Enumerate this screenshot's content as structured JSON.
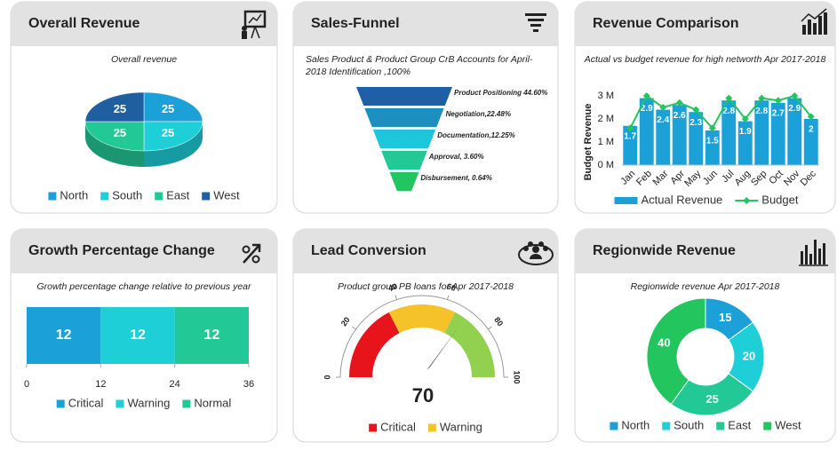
{
  "chart_data": [
    {
      "type": "pie3d",
      "title": "Overall Revenue",
      "subtitle": "Overall revenue",
      "categories": [
        "North",
        "South",
        "East",
        "West"
      ],
      "values": [
        25,
        25,
        25,
        25
      ],
      "colors": [
        "#1ba1d8",
        "#1fcfd8",
        "#22c997",
        "#1f5fa0"
      ],
      "legend": "bottom"
    },
    {
      "type": "funnel",
      "title": "Sales-Funnel",
      "subtitle": [
        "Sales Product & Product Group CrB Accounts for April-",
        "2018 Identification ,100%"
      ],
      "categories": [
        "Product Positioning 44.60%",
        "Negotiation,22.48%",
        "Documentation,12.25%",
        "Approval, 3.60%",
        "Disbursement, 0.64%"
      ],
      "values": [
        44.6,
        22.48,
        12.25,
        3.6,
        0.64
      ],
      "colors": [
        "#1f5fa6",
        "#1b8fc0",
        "#1ec6dc",
        "#22c997",
        "#22c55e"
      ]
    },
    {
      "type": "bar-line",
      "title": "Revenue Comparison",
      "subtitle": "Actual vs budget revenue for high networth Apr 2017-2018",
      "y_label": "Budget Revenue",
      "categories": [
        "Jan",
        "Feb",
        "Mar",
        "Apr",
        "May",
        "Jun",
        "Jul",
        "Aug",
        "Sep",
        "Oct",
        "Nov",
        "Dec"
      ],
      "series": [
        {
          "name": "Actual Revenue",
          "type": "bar",
          "color": "#1ba1d8",
          "values": [
            1.7,
            2.9,
            2.4,
            2.6,
            2.3,
            1.5,
            2.8,
            1.9,
            2.8,
            2.7,
            2.9,
            2
          ]
        },
        {
          "name": "Budget",
          "type": "line",
          "color": "#22c55e",
          "values": [
            1.6,
            3.0,
            2.5,
            2.7,
            2.4,
            1.6,
            2.9,
            2.0,
            2.9,
            2.8,
            3.0,
            2.1
          ]
        }
      ],
      "ylim": [
        0,
        3
      ],
      "yticks": [
        {
          "value": 0,
          "label": "0 M"
        },
        {
          "value": 1,
          "label": "1 M"
        },
        {
          "value": 2,
          "label": "2 M"
        },
        {
          "value": 3,
          "label": "3 M"
        }
      ],
      "legend": "bottom"
    },
    {
      "type": "stacked-barh",
      "title": "Growth Percentage Change",
      "subtitle": "Growth percentage change relative to previous year",
      "series": [
        {
          "name": "Critical",
          "color": "#1ba1d8",
          "values": [
            12
          ]
        },
        {
          "name": "Warning",
          "color": "#1fcfd8",
          "values": [
            12
          ]
        },
        {
          "name": "Normal",
          "color": "#22c997",
          "values": [
            12
          ]
        }
      ],
      "xlim": [
        0,
        36
      ],
      "xticks": [
        0,
        12,
        24,
        36
      ],
      "legend": "bottom"
    },
    {
      "type": "gauge",
      "title": "Lead Conversion",
      "subtitle": "Product group PB loans for Apr 2017-2018",
      "value": 70,
      "xlim": [
        0,
        100
      ],
      "xticks": [
        0,
        20,
        40,
        60,
        80,
        100
      ],
      "bands": [
        {
          "name": "Critical",
          "color": "#e8141b",
          "range": [
            0,
            35
          ]
        },
        {
          "name": "Warning",
          "color": "#f5c22a",
          "range": [
            35,
            65
          ]
        },
        {
          "color": "#92d050",
          "range": [
            65,
            100
          ]
        }
      ],
      "legend": "bottom"
    },
    {
      "type": "donut",
      "title": "Regionwide Revenue",
      "subtitle": "Regionwide revenue Apr 2017-2018",
      "categories": [
        "North",
        "South",
        "East",
        "West"
      ],
      "values": [
        15,
        20,
        25,
        40
      ],
      "colors": [
        "#1ba1d8",
        "#1fcfd8",
        "#22c997",
        "#22c55e"
      ],
      "legend": "bottom"
    }
  ]
}
